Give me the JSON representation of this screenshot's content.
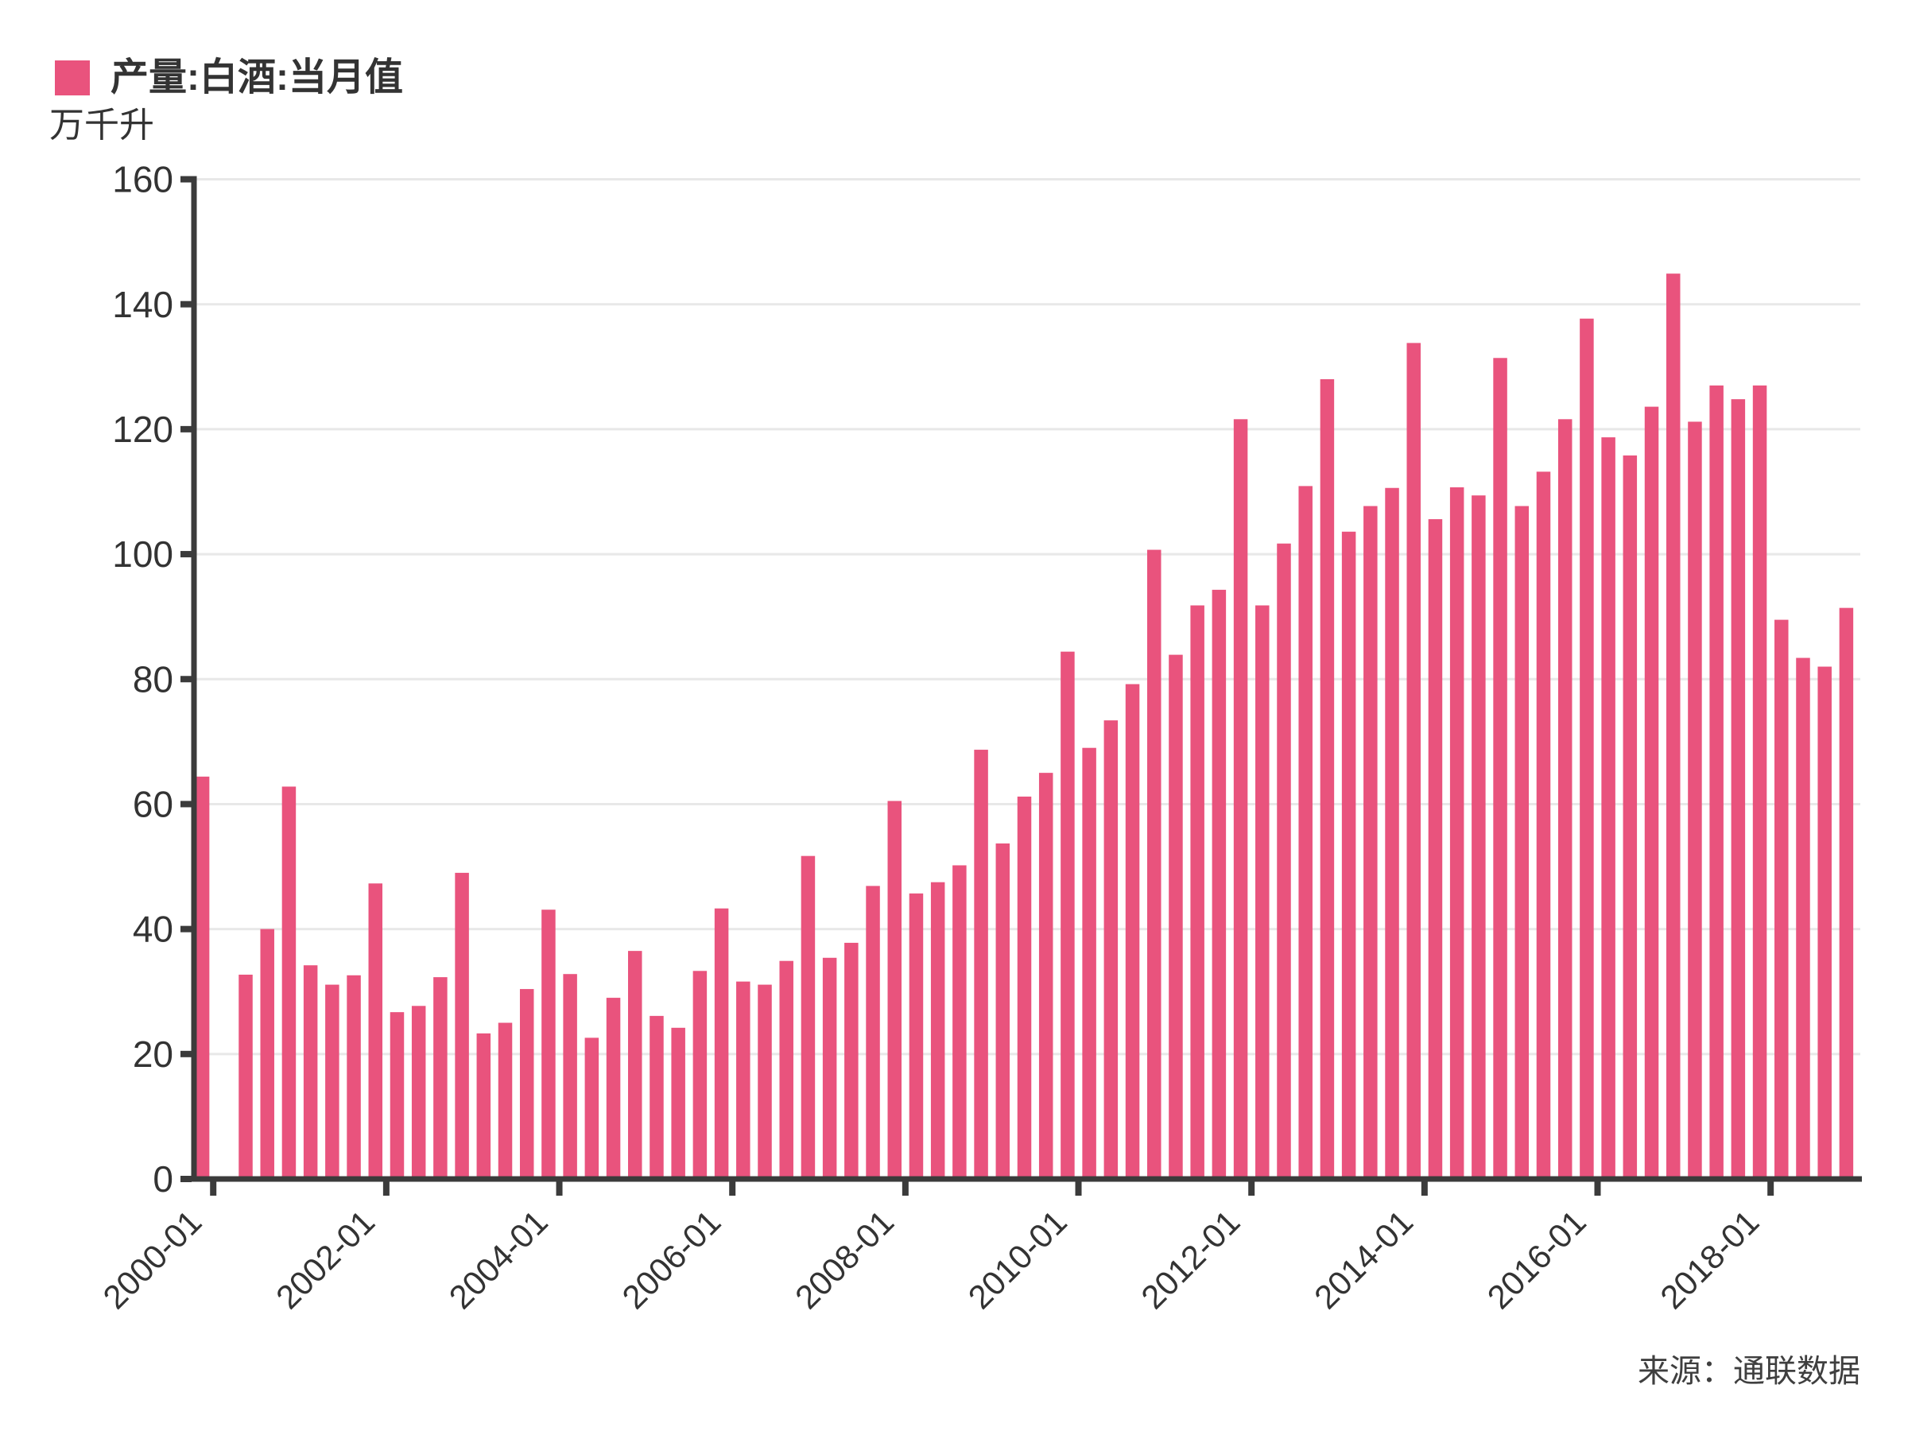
{
  "legend": {
    "label": "产量:白酒:当月值",
    "color": "#E9537D"
  },
  "y_axis": {
    "unit": "万千升",
    "min": 0,
    "max": 160,
    "step": 20,
    "tick_labels": [
      "0",
      "20",
      "40",
      "60",
      "80",
      "100",
      "120",
      "140",
      "160"
    ]
  },
  "source": "来源：通联数据",
  "chart_data": {
    "type": "bar",
    "title": "产量:白酒:当月值",
    "ylabel": "万千升",
    "ylim": [
      0,
      160
    ],
    "ytick_step": 20,
    "grid": true,
    "legend_position": "top-left",
    "bar_color": "#E9537D",
    "axis_color": "#3b3b3b",
    "grid_color": "#e8e8e8",
    "x_axis_tick_labels": [
      "2000-01",
      "2002-01",
      "2004-01",
      "2006-01",
      "2008-01",
      "2010-01",
      "2012-01",
      "2014-01",
      "2016-01",
      "2018-01"
    ],
    "x": [
      "1999-12",
      "2000-03",
      "2000-06",
      "2000-09",
      "2000-12",
      "2001-03",
      "2001-06",
      "2001-09",
      "2001-12",
      "2002-03",
      "2002-06",
      "2002-09",
      "2002-12",
      "2003-03",
      "2003-06",
      "2003-09",
      "2003-12",
      "2004-03",
      "2004-06",
      "2004-09",
      "2004-12",
      "2005-03",
      "2005-06",
      "2005-09",
      "2005-12",
      "2006-03",
      "2006-06",
      "2006-09",
      "2006-12",
      "2007-03",
      "2007-06",
      "2007-09",
      "2007-12",
      "2008-03",
      "2008-06",
      "2008-09",
      "2008-12",
      "2009-03",
      "2009-06",
      "2009-09",
      "2009-12",
      "2010-03",
      "2010-06",
      "2010-09",
      "2010-12",
      "2011-03",
      "2011-06",
      "2011-09",
      "2011-12",
      "2012-03",
      "2012-06",
      "2012-09",
      "2012-12",
      "2013-03",
      "2013-06",
      "2013-09",
      "2013-12",
      "2014-03",
      "2014-06",
      "2014-09",
      "2014-12",
      "2015-03",
      "2015-06",
      "2015-09",
      "2015-12",
      "2016-03",
      "2016-06",
      "2016-09",
      "2016-12",
      "2017-03",
      "2017-06",
      "2017-09",
      "2017-12",
      "2018-03",
      "2018-06",
      "2018-09",
      "2018-12"
    ],
    "values": [
      64.4,
      null,
      32.7,
      40.0,
      62.8,
      34.2,
      31.1,
      32.6,
      47.3,
      26.7,
      27.7,
      32.3,
      49.0,
      23.3,
      25.0,
      30.4,
      43.1,
      32.8,
      22.6,
      29.0,
      36.5,
      26.1,
      24.2,
      33.3,
      43.3,
      31.6,
      31.1,
      34.9,
      51.7,
      35.4,
      37.8,
      46.9,
      60.5,
      45.7,
      47.5,
      50.2,
      68.7,
      53.7,
      61.2,
      65.0,
      84.4,
      69.0,
      73.4,
      79.2,
      100.7,
      83.9,
      91.8,
      94.3,
      121.6,
      91.8,
      101.7,
      110.9,
      128.0,
      103.6,
      107.7,
      110.6,
      133.8,
      105.6,
      110.7,
      109.4,
      131.4,
      107.7,
      113.2,
      121.6,
      137.7,
      118.7,
      115.8,
      123.6,
      144.9,
      121.2,
      127.0,
      124.8,
      127.0,
      89.5,
      83.4,
      82.0,
      91.4
    ]
  }
}
